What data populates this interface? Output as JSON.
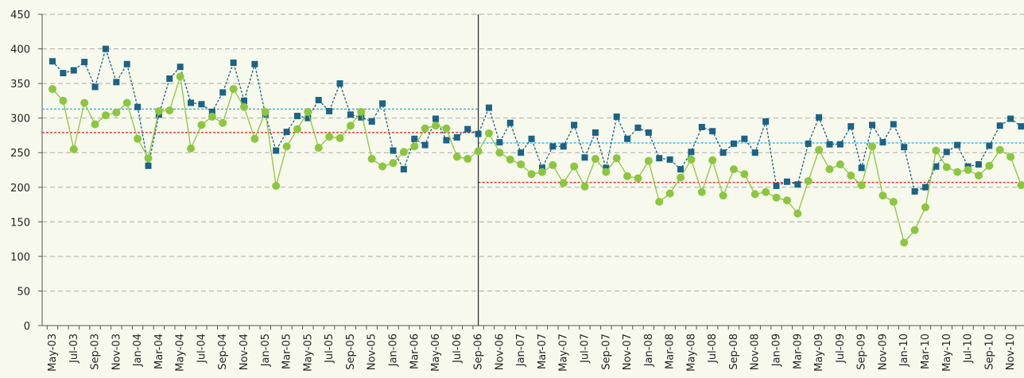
{
  "chart_data": {
    "type": "line",
    "categories": [
      "May-03",
      null,
      "Jul-03",
      null,
      "Sep-03",
      null,
      "Nov-03",
      null,
      "Jan-04",
      null,
      "Mar-04",
      null,
      "May-04",
      null,
      "Jul-04",
      null,
      "Sep-04",
      null,
      "Nov-04",
      null,
      "Jan-05",
      null,
      "Mar-05",
      null,
      "May-05",
      null,
      "Jul-05",
      null,
      "Sep-05",
      null,
      "Nov-05",
      null,
      "Jan-06",
      null,
      "Mar-06",
      null,
      "May-06",
      null,
      "Jul-06",
      null,
      "Sep-06",
      null,
      "Nov-06",
      null,
      "Jan-07",
      null,
      "Mar-07",
      null,
      "May-07",
      null,
      "Jul-07",
      null,
      "Sep-07",
      null,
      "Nov-07",
      null,
      "Jan-08",
      null,
      "Mar-08",
      null,
      "May-08",
      null,
      "Jul-08",
      null,
      "Sep-08",
      null,
      "Nov-08",
      null,
      "Jan-09",
      null,
      "Mar-09",
      null,
      "May-09",
      null,
      "Jul-09",
      null,
      "Sep-09",
      null,
      "Nov-09",
      null,
      "Jan-10",
      null,
      "Mar-10",
      null,
      "May-10",
      null,
      "Jul-10",
      null,
      "Sep-10",
      null,
      "Nov-10",
      null
    ],
    "series": [
      {
        "color": "#1b6386",
        "line_style": "dashed",
        "marker": "square",
        "values": [
          382,
          365,
          369,
          381,
          345,
          400,
          352,
          378,
          316,
          231,
          305,
          357,
          374,
          322,
          320,
          309,
          337,
          380,
          325,
          378,
          305,
          253,
          280,
          303,
          300,
          326,
          310,
          350,
          305,
          301,
          295,
          321,
          253,
          226,
          270,
          261,
          299,
          268,
          272,
          284,
          277,
          315,
          265,
          293,
          250,
          270,
          228,
          259,
          259,
          290,
          243,
          279,
          228,
          302,
          270,
          286,
          279,
          242,
          240,
          226,
          251,
          287,
          281,
          250,
          263,
          270,
          250,
          295,
          202,
          208,
          204,
          263,
          301,
          262,
          262,
          288,
          228,
          290,
          265,
          291,
          258,
          194,
          200,
          230,
          251,
          261,
          230,
          233,
          260,
          289,
          299,
          288
        ]
      },
      {
        "color": "#8cc63f",
        "line_style": "solid",
        "marker": "circle",
        "values": [
          342,
          325,
          255,
          322,
          291,
          304,
          308,
          322,
          270,
          242,
          310,
          311,
          360,
          256,
          290,
          302,
          293,
          342,
          316,
          270,
          309,
          202,
          259,
          284,
          309,
          257,
          273,
          271,
          289,
          309,
          241,
          230,
          235,
          251,
          259,
          285,
          289,
          285,
          244,
          241,
          252,
          278,
          250,
          240,
          233,
          219,
          222,
          232,
          206,
          230,
          201,
          241,
          222,
          242,
          216,
          213,
          238,
          179,
          191,
          214,
          240,
          193,
          239,
          188,
          226,
          219,
          190,
          193,
          185,
          181,
          162,
          209,
          254,
          226,
          233,
          217,
          203,
          259,
          188,
          179,
          120,
          138,
          171,
          253,
          229,
          222,
          225,
          217,
          231,
          254,
          244,
          203
        ]
      }
    ],
    "divider": "Sep-06",
    "reference_lines": [
      {
        "color": "#29abe2",
        "values": [
          313,
          264
        ]
      },
      {
        "color": "#d62b2b",
        "values": [
          279,
          207
        ]
      }
    ],
    "ylim": [
      0,
      450
    ],
    "yticks": [
      0,
      50,
      100,
      150,
      200,
      250,
      300,
      350,
      400,
      450
    ],
    "grid": true
  }
}
